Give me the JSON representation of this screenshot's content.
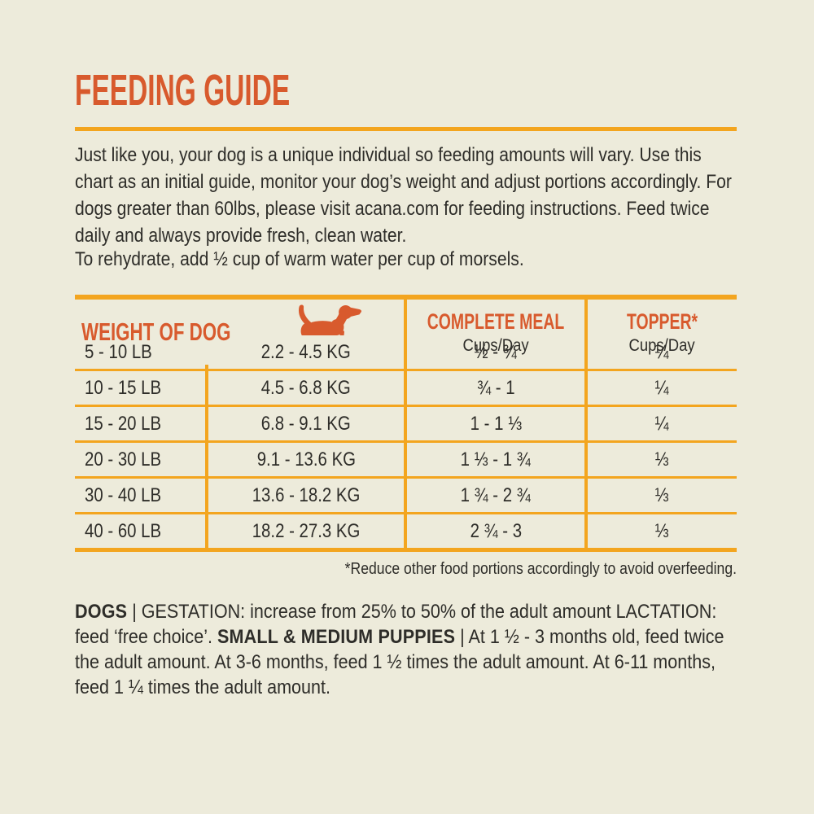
{
  "colors": {
    "background": "#edebdb",
    "accent_orange": "#d85a2d",
    "accent_gold": "#f3a51f",
    "text": "#2e2d29"
  },
  "page": {
    "title": "FEEDING GUIDE",
    "intro": "Just like you, your dog is a unique individual so feeding amounts will vary. Use this chart as an initial guide, monitor your dog’s weight and adjust portions accordingly. For dogs greater than 60lbs, please visit acana.com for feeding instructions. Feed twice daily and always provide fresh, clean water.",
    "rehydrate": "To rehydrate, add ½ cup of warm water per cup of morsels.",
    "footnote": "*Reduce other food portions accordingly to avoid overfeeding."
  },
  "table": {
    "header": {
      "weight_label": "WEIGHT OF DOG",
      "dog_icon": "dog-silhouette-icon",
      "complete_meal_label": "COMPLETE MEAL",
      "complete_meal_sub": "Cups/Day",
      "topper_label": "TOPPER*",
      "topper_sub": "Cups/Day"
    },
    "rows": [
      {
        "lb": "5 - 10 LB",
        "kg": "2.2 - 4.5 KG",
        "meal": "½ - ¾",
        "topper": "¼"
      },
      {
        "lb": "10 - 15 LB",
        "kg": "4.5 - 6.8 KG",
        "meal": "¾ - 1",
        "topper": "¼"
      },
      {
        "lb": "15 - 20 LB",
        "kg": "6.8 - 9.1 KG",
        "meal": "1 - 1 ⅓",
        "topper": "¼"
      },
      {
        "lb": "20 - 30 LB",
        "kg": "9.1 - 13.6 KG",
        "meal": "1 ⅓ - 1 ¾",
        "topper": "⅓"
      },
      {
        "lb": "30 - 40 LB",
        "kg": "13.6 - 18.2 KG",
        "meal": "1 ¾ - 2 ¾",
        "topper": "⅓"
      },
      {
        "lb": "40 - 60 LB",
        "kg": "18.2 - 27.3 KG",
        "meal": "2 ¾ - 3",
        "topper": "⅓"
      }
    ]
  },
  "notes": {
    "segments": [
      {
        "text": "DOGS",
        "bold": true
      },
      {
        "text": " | GESTATION: increase from 25% to 50% of the adult amount LACTATION: feed ‘free choice’. ",
        "bold": false
      },
      {
        "text": "SMALL & MEDIUM PUPPIES",
        "bold": true
      },
      {
        "text": " | At 1 ½ - 3 months old, feed twice the adult amount. At 3-6 months, feed 1 ½ times the adult amount. At 6-11 months, feed 1 ¼ times the adult amount.",
        "bold": false
      }
    ]
  }
}
